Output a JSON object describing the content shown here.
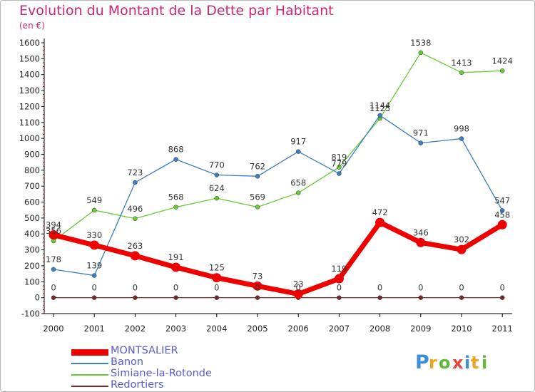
{
  "title": "Evolution du Montant de la Dette par Habitant",
  "subtitle": "(en €)",
  "logo_text": "Proxiti",
  "chart_data": {
    "type": "line",
    "x": [
      "2000",
      "2001",
      "2002",
      "2003",
      "2004",
      "2005",
      "2006",
      "2007",
      "2008",
      "2009",
      "2010",
      "2011"
    ],
    "ylim": [
      -100,
      1600
    ],
    "yticks": [
      -100,
      0,
      100,
      200,
      300,
      400,
      500,
      600,
      700,
      800,
      900,
      1000,
      1100,
      1200,
      1300,
      1400,
      1500,
      1600
    ],
    "grid": false,
    "legend_position": "bottom-left",
    "series": [
      {
        "name": "MONTSALIER",
        "color": "#ee0000",
        "values": [
          394,
          330,
          263,
          191,
          125,
          73,
          23,
          119,
          472,
          346,
          302,
          458
        ]
      },
      {
        "name": "Banon",
        "color": "#3a7fc4",
        "values": [
          178,
          139,
          723,
          868,
          770,
          762,
          917,
          779,
          1144,
          971,
          998,
          547
        ]
      },
      {
        "name": "Simiane-la-Rotonde",
        "color": "#66cc33",
        "values": [
          356,
          549,
          496,
          568,
          624,
          569,
          658,
          819,
          1125,
          1538,
          1413,
          1424
        ]
      },
      {
        "name": "Redortiers",
        "color": "#7a2828",
        "values": [
          0,
          0,
          0,
          0,
          0,
          0,
          0,
          0,
          0,
          0,
          0,
          0
        ]
      }
    ]
  }
}
